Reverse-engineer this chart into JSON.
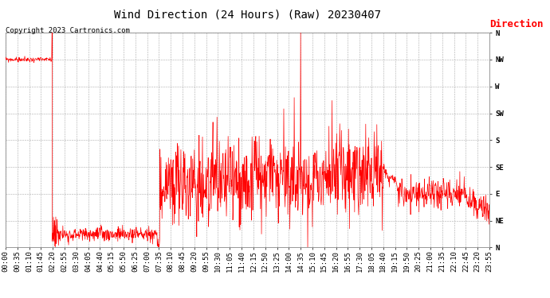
{
  "title": "Wind Direction (24 Hours) (Raw) 20230407",
  "copyright": "Copyright 2023 Cartronics.com",
  "legend_label": "Direction",
  "background_color": "#ffffff",
  "plot_bg_color": "#ffffff",
  "grid_color": "#aaaaaa",
  "line_color_red": "#ff0000",
  "line_color_dark": "#111111",
  "ytick_labels": [
    "N",
    "NW",
    "W",
    "SW",
    "S",
    "SE",
    "E",
    "NE",
    "N"
  ],
  "ytick_values": [
    360,
    315,
    270,
    225,
    180,
    135,
    90,
    45,
    0
  ],
  "ylim": [
    0,
    360
  ],
  "title_fontsize": 10,
  "tick_fontsize": 6.5,
  "copyright_fontsize": 6.5,
  "legend_fontsize": 9
}
